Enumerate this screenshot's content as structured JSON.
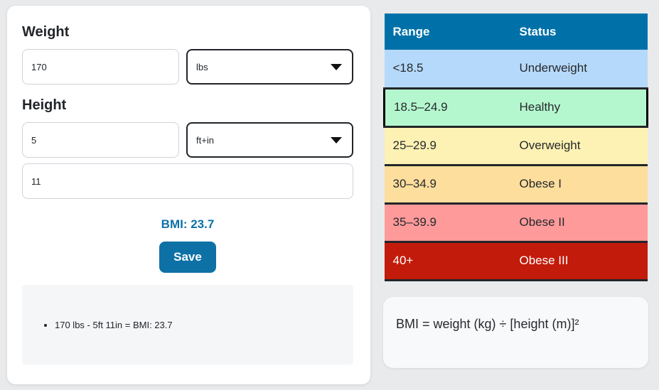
{
  "calculator": {
    "weight_label": "Weight",
    "weight_value": "170",
    "weight_unit": "lbs",
    "height_label": "Height",
    "height_primary_value": "5",
    "height_unit": "ft+in",
    "height_secondary_value": "11",
    "bmi_result": "BMI: 23.7",
    "save_label": "Save",
    "history": [
      "170 lbs - 5ft 11in = BMI: 23.7"
    ]
  },
  "reference_table": {
    "headers": [
      "Range",
      "Status"
    ],
    "rows": [
      {
        "range": "<18.5",
        "status": "Underweight",
        "color": "#b5d9fa",
        "highlighted": false
      },
      {
        "range": "18.5–24.9",
        "status": "Healthy",
        "color": "#b4f7ce",
        "highlighted": true
      },
      {
        "range": "25–29.9",
        "status": "Overweight",
        "color": "#fdf2b3",
        "highlighted": false
      },
      {
        "range": "30–34.9",
        "status": "Obese I",
        "color": "#fede9c",
        "highlighted": false
      },
      {
        "range": "35–39.9",
        "status": "Obese II",
        "color": "#fe9a9a",
        "highlighted": false
      },
      {
        "range": "40+",
        "status": "Obese III",
        "color": "#c21b0b",
        "text_color": "#ffffff",
        "highlighted": false
      }
    ]
  },
  "formula": {
    "text": "BMI = weight (kg) ÷ [height (m)]²"
  },
  "colors": {
    "accent_blue": "#0e71a6",
    "table_header_blue": "#0071a8",
    "row_separator": "#222529",
    "highlight_border": "#000000",
    "page_background": "#e9eaeb",
    "history_background": "#f5f6f8"
  }
}
